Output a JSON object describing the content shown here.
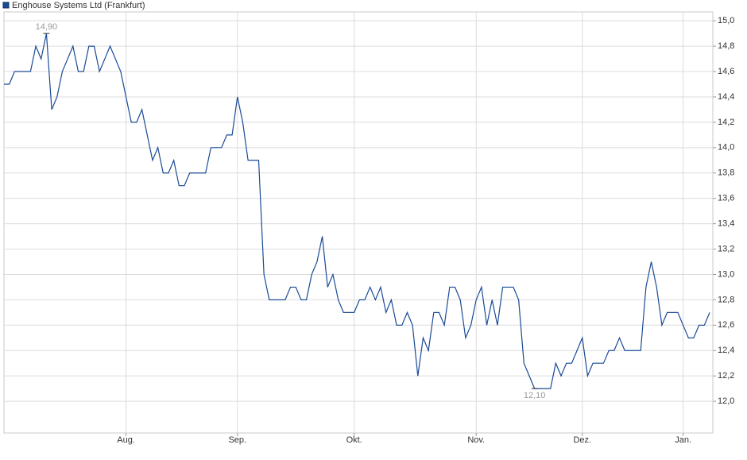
{
  "chart_data": {
    "type": "line",
    "categories": [
      null,
      null,
      null,
      null,
      null,
      null,
      null,
      null,
      null,
      null,
      null,
      null,
      null,
      null,
      null,
      null,
      null,
      null,
      null,
      null,
      null,
      null,
      null,
      "Aug.",
      null,
      null,
      null,
      null,
      null,
      null,
      null,
      null,
      null,
      null,
      null,
      null,
      null,
      null,
      null,
      null,
      null,
      null,
      null,
      null,
      "Sep.",
      null,
      null,
      null,
      null,
      null,
      null,
      null,
      null,
      null,
      null,
      null,
      null,
      null,
      null,
      null,
      null,
      null,
      null,
      null,
      null,
      null,
      "Okt.",
      null,
      null,
      null,
      null,
      null,
      null,
      null,
      null,
      null,
      null,
      null,
      null,
      null,
      null,
      null,
      null,
      null,
      null,
      null,
      null,
      null,
      null,
      "Nov.",
      null,
      null,
      null,
      null,
      null,
      null,
      null,
      null,
      null,
      null,
      null,
      null,
      null,
      null,
      null,
      null,
      null,
      null,
      null,
      "Dez.",
      null,
      null,
      null,
      null,
      null,
      null,
      null,
      null,
      null,
      null,
      null,
      null,
      null,
      null,
      null,
      null,
      null,
      null,
      "Jan.",
      null,
      null,
      null,
      null,
      null
    ],
    "series": [
      {
        "name": "Enghouse Systems Ltd (Frankfurt)",
        "color": "#1a4a96",
        "values": [
          14.5,
          14.5,
          14.6,
          14.6,
          14.6,
          14.6,
          14.8,
          14.7,
          14.9,
          14.3,
          14.4,
          14.6,
          14.7,
          14.8,
          14.6,
          14.6,
          14.8,
          14.8,
          14.6,
          14.7,
          14.8,
          14.7,
          14.6,
          14.4,
          14.2,
          14.2,
          14.3,
          14.1,
          13.9,
          14.0,
          13.8,
          13.8,
          13.9,
          13.7,
          13.7,
          13.8,
          13.8,
          13.8,
          13.8,
          14.0,
          14.0,
          14.0,
          14.1,
          14.1,
          14.4,
          14.2,
          13.9,
          13.9,
          13.9,
          13.0,
          12.8,
          12.8,
          12.8,
          12.8,
          12.9,
          12.9,
          12.8,
          12.8,
          13.0,
          13.1,
          13.3,
          12.9,
          13.0,
          12.8,
          12.7,
          12.7,
          12.7,
          12.8,
          12.8,
          12.9,
          12.8,
          12.9,
          12.7,
          12.8,
          12.6,
          12.6,
          12.7,
          12.6,
          12.2,
          12.5,
          12.4,
          12.7,
          12.7,
          12.6,
          12.9,
          12.9,
          12.8,
          12.5,
          12.6,
          12.8,
          12.9,
          12.6,
          12.8,
          12.6,
          12.9,
          12.9,
          12.9,
          12.8,
          12.3,
          12.2,
          12.1,
          12.1,
          12.1,
          12.1,
          12.3,
          12.2,
          12.3,
          12.3,
          12.4,
          12.5,
          12.2,
          12.3,
          12.3,
          12.3,
          12.4,
          12.4,
          12.5,
          12.4,
          12.4,
          12.4,
          12.4,
          12.9,
          13.1,
          12.9,
          12.6,
          12.7,
          12.7,
          12.7,
          12.6,
          12.5,
          12.5,
          12.6,
          12.6,
          12.7
        ],
        "value_labels": [
          null,
          null,
          null,
          null,
          null,
          null,
          null,
          null,
          "14,90",
          null,
          null,
          null,
          null,
          null,
          null,
          null,
          null,
          null,
          null,
          null,
          null,
          null,
          null,
          null,
          null,
          null,
          null,
          null,
          null,
          null,
          null,
          null,
          null,
          null,
          null,
          null,
          null,
          null,
          null,
          null,
          null,
          null,
          null,
          null,
          null,
          null,
          null,
          null,
          null,
          null,
          null,
          null,
          null,
          null,
          null,
          null,
          null,
          null,
          null,
          null,
          null,
          null,
          null,
          null,
          null,
          null,
          null,
          null,
          null,
          null,
          null,
          null,
          null,
          null,
          null,
          null,
          null,
          null,
          null,
          null,
          null,
          null,
          null,
          null,
          null,
          null,
          null,
          null,
          null,
          null,
          null,
          null,
          null,
          null,
          null,
          null,
          null,
          null,
          null,
          null,
          "12,10",
          null,
          null,
          null,
          null,
          null,
          null,
          null,
          null,
          null,
          null,
          null,
          null,
          null,
          null,
          null,
          null,
          null,
          null,
          null,
          null,
          null,
          null,
          null,
          null,
          null,
          null,
          null,
          null,
          null,
          null,
          null,
          null,
          null
        ]
      }
    ],
    "ylim": [
      11.75,
      15.07
    ],
    "yticks": [
      {
        "value": 12.0,
        "label": "12,0"
      },
      {
        "value": 12.2,
        "label": "12,2"
      },
      {
        "value": 12.4,
        "label": "12,4"
      },
      {
        "value": 12.6,
        "label": "12,6"
      },
      {
        "value": 12.8,
        "label": "12,8"
      },
      {
        "value": 13.0,
        "label": "13,0"
      },
      {
        "value": 13.2,
        "label": "13,2"
      },
      {
        "value": 13.4,
        "label": "13,4"
      },
      {
        "value": 13.6,
        "label": "13,6"
      },
      {
        "value": 13.8,
        "label": "13,8"
      },
      {
        "value": 14.0,
        "label": "14,0"
      },
      {
        "value": 14.2,
        "label": "14,2"
      },
      {
        "value": 14.4,
        "label": "14,4"
      },
      {
        "value": 14.6,
        "label": "14,6"
      },
      {
        "value": 14.8,
        "label": "14,8"
      },
      {
        "value": 15.0,
        "label": "15,0"
      }
    ],
    "grid": true
  }
}
